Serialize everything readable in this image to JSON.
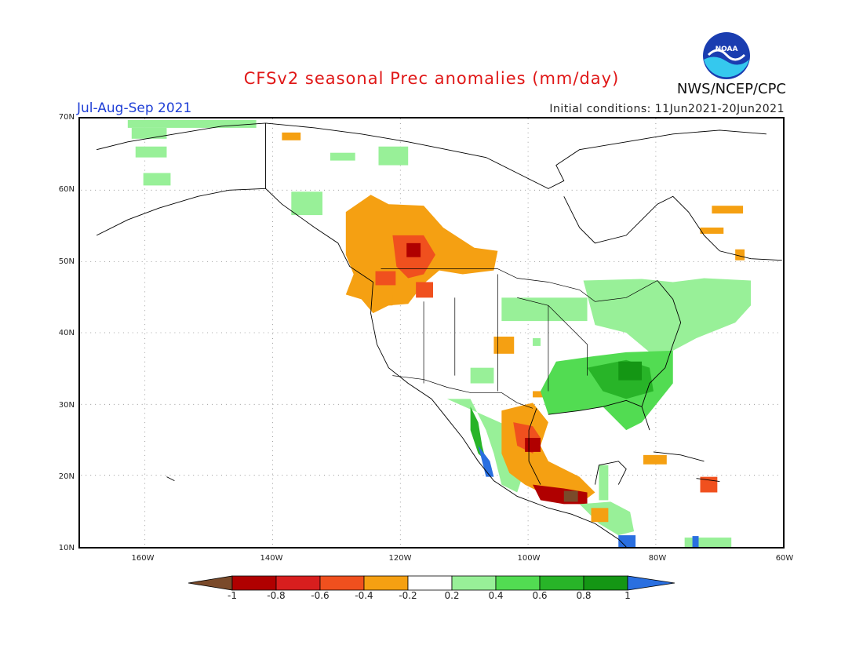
{
  "title": "CFSv2 seasonal Prec anomalies (mm/day)",
  "season": "Jul-Aug-Sep 2021",
  "initial_conditions": "Initial conditions: 11Jun2021-20Jun2021",
  "agency": "NWS/NCEP/CPC",
  "logo_text": "NOAA",
  "map": {
    "region": "North America",
    "lon_range": [
      -170,
      -60
    ],
    "lat_range": [
      10,
      70
    ],
    "lat_labels": [
      "70N",
      "60N",
      "50N",
      "40N",
      "30N",
      "20N",
      "10N"
    ],
    "lon_labels": [
      "160W",
      "140W",
      "120W",
      "100W",
      "80W",
      "60W"
    ],
    "gridlines": true
  },
  "colorbar": {
    "levels": [
      "-1",
      "-0.8",
      "-0.6",
      "-0.4",
      "-0.2",
      "0.2",
      "0.4",
      "0.6",
      "0.8",
      "1"
    ],
    "colors": [
      "#7a4a2a",
      "#b00000",
      "#d81e1e",
      "#f0501e",
      "#f5a012",
      "#ffffff",
      "#98f098",
      "#52dc52",
      "#28b428",
      "#149614",
      "#2a6fe0"
    ]
  },
  "colors": {
    "title": "#e01818",
    "season": "#1f3fd6"
  }
}
